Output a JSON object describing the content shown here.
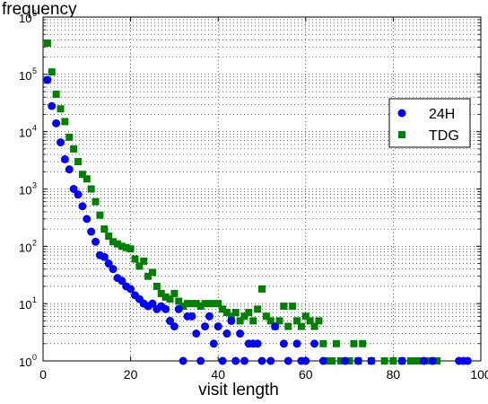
{
  "chart_data": {
    "type": "scatter",
    "ylabel": "frequency",
    "xlabel": "visit length",
    "xlim": [
      0,
      100
    ],
    "ylim": [
      1,
      1000000
    ],
    "yscale": "log",
    "grid": true,
    "legend_position": "upper-right",
    "x_ticks": [
      "0",
      "20",
      "40",
      "60",
      "80",
      "100"
    ],
    "y_ticks": [
      "10",
      "10",
      "10",
      "10",
      "10",
      "10",
      "10"
    ],
    "y_tick_exponents": [
      "0",
      "1",
      "2",
      "3",
      "4",
      "5",
      "6"
    ],
    "series": [
      {
        "name": "24H",
        "marker": "circle",
        "color": "#0000ff",
        "points": [
          [
            1,
            80000
          ],
          [
            2,
            28000
          ],
          [
            3,
            14000
          ],
          [
            4,
            6500
          ],
          [
            5,
            3300
          ],
          [
            6,
            2200
          ],
          [
            7,
            1000
          ],
          [
            8,
            800
          ],
          [
            9,
            500
          ],
          [
            10,
            300
          ],
          [
            11,
            180
          ],
          [
            12,
            120
          ],
          [
            13,
            70
          ],
          [
            14,
            65
          ],
          [
            15,
            50
          ],
          [
            16,
            40
          ],
          [
            17,
            28
          ],
          [
            18,
            25
          ],
          [
            19,
            20
          ],
          [
            20,
            18
          ],
          [
            21,
            14
          ],
          [
            22,
            12
          ],
          [
            23,
            10
          ],
          [
            24,
            9
          ],
          [
            25,
            10
          ],
          [
            26,
            8
          ],
          [
            27,
            9
          ],
          [
            28,
            8
          ],
          [
            29,
            5
          ],
          [
            30,
            4
          ],
          [
            31,
            8
          ],
          [
            32,
            1
          ],
          [
            33,
            6
          ],
          [
            34,
            6
          ],
          [
            35,
            3
          ],
          [
            36,
            1
          ],
          [
            37,
            4
          ],
          [
            38,
            6
          ],
          [
            39,
            2
          ],
          [
            40,
            4
          ],
          [
            41,
            1
          ],
          [
            42,
            3
          ],
          [
            43,
            5
          ],
          [
            44,
            1
          ],
          [
            45,
            3
          ],
          [
            46,
            1
          ],
          [
            47,
            2
          ],
          [
            48,
            2
          ],
          [
            49,
            2
          ],
          [
            50,
            1
          ],
          [
            52,
            1
          ],
          [
            53,
            4
          ],
          [
            55,
            2
          ],
          [
            56,
            1
          ],
          [
            58,
            2
          ],
          [
            59,
            1
          ],
          [
            60,
            1
          ],
          [
            62,
            2
          ],
          [
            64,
            1
          ],
          [
            69,
            1
          ],
          [
            72,
            1
          ],
          [
            75,
            1
          ],
          [
            82,
            1
          ],
          [
            87,
            1
          ],
          [
            89,
            1
          ],
          [
            95,
            1
          ],
          [
            96,
            1
          ],
          [
            97,
            1
          ]
        ]
      },
      {
        "name": "TDG",
        "marker": "square",
        "color": "#008000",
        "points": [
          [
            1,
            350000
          ],
          [
            2,
            110000
          ],
          [
            3,
            45000
          ],
          [
            4,
            25000
          ],
          [
            5,
            15000
          ],
          [
            6,
            8000
          ],
          [
            7,
            5000
          ],
          [
            8,
            3000
          ],
          [
            9,
            1800
          ],
          [
            10,
            1500
          ],
          [
            11,
            1000
          ],
          [
            12,
            600
          ],
          [
            13,
            350
          ],
          [
            14,
            200
          ],
          [
            15,
            150
          ],
          [
            16,
            120
          ],
          [
            17,
            110
          ],
          [
            18,
            100
          ],
          [
            19,
            95
          ],
          [
            20,
            90
          ],
          [
            21,
            60
          ],
          [
            22,
            45
          ],
          [
            23,
            55
          ],
          [
            24,
            30
          ],
          [
            25,
            35
          ],
          [
            26,
            20
          ],
          [
            27,
            15
          ],
          [
            28,
            13
          ],
          [
            29,
            12
          ],
          [
            30,
            15
          ],
          [
            31,
            11
          ],
          [
            32,
            9
          ],
          [
            33,
            10
          ],
          [
            34,
            10
          ],
          [
            35,
            10
          ],
          [
            36,
            9
          ],
          [
            37,
            10
          ],
          [
            38,
            10
          ],
          [
            39,
            10
          ],
          [
            40,
            10
          ],
          [
            41,
            8
          ],
          [
            42,
            7
          ],
          [
            43,
            6
          ],
          [
            44,
            7
          ],
          [
            45,
            5
          ],
          [
            46,
            6
          ],
          [
            47,
            7
          ],
          [
            48,
            5
          ],
          [
            49,
            8
          ],
          [
            50,
            18
          ],
          [
            51,
            6
          ],
          [
            52,
            5
          ],
          [
            53,
            4
          ],
          [
            54,
            5
          ],
          [
            55,
            9
          ],
          [
            56,
            4
          ],
          [
            57,
            9
          ],
          [
            58,
            5
          ],
          [
            59,
            4
          ],
          [
            60,
            6
          ],
          [
            61,
            5
          ],
          [
            62,
            4
          ],
          [
            63,
            5
          ],
          [
            64,
            2
          ],
          [
            65,
            1
          ],
          [
            66,
            1
          ],
          [
            67,
            2
          ],
          [
            68,
            1
          ],
          [
            69,
            1
          ],
          [
            70,
            1
          ],
          [
            71,
            2
          ],
          [
            72,
            1
          ],
          [
            73,
            2
          ],
          [
            75,
            1
          ],
          [
            78,
            1
          ],
          [
            80,
            1
          ],
          [
            82,
            1
          ],
          [
            84,
            1
          ],
          [
            85,
            1
          ],
          [
            86,
            1
          ],
          [
            87,
            1
          ],
          [
            88,
            1
          ],
          [
            90,
            1
          ]
        ]
      }
    ]
  }
}
